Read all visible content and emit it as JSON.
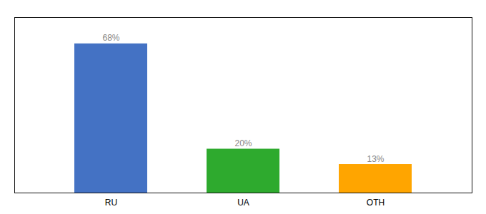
{
  "chart_data": {
    "type": "bar",
    "categories": [
      "RU",
      "UA",
      "OTH"
    ],
    "values": [
      68,
      20,
      13
    ],
    "value_labels": [
      "68%",
      "20%",
      "13%"
    ],
    "colors": [
      "#4472C4",
      "#2EAA2E",
      "#FFA500"
    ],
    "ylim": [
      0,
      80
    ],
    "data_labels": true,
    "tick_labels": "x",
    "grid": false
  }
}
